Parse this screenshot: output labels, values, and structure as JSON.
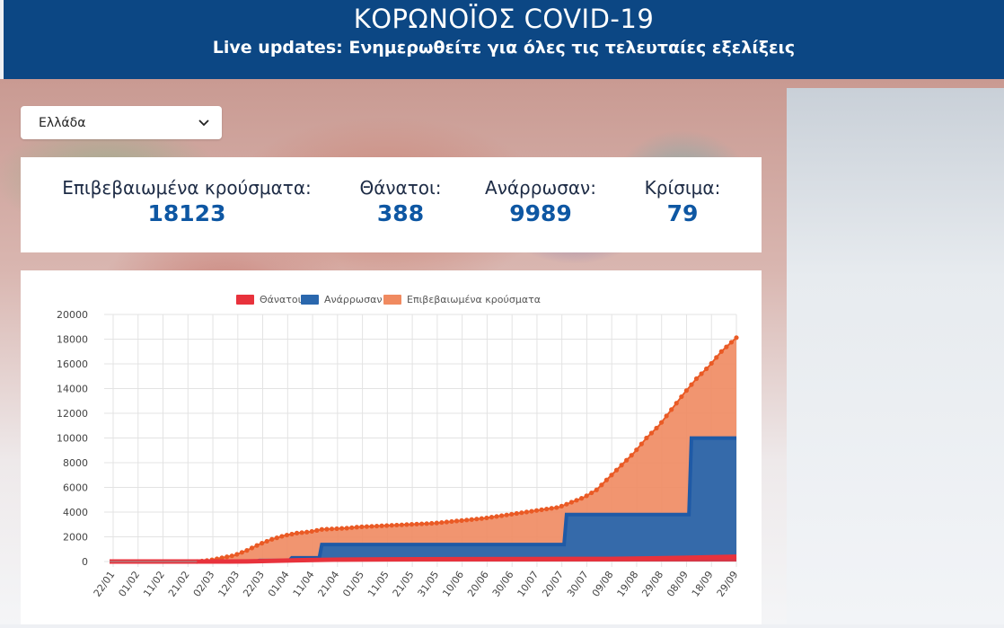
{
  "header": {
    "title": "ΚΟΡΩΝΟΪΟΣ COVID-19",
    "subtitle": "Live updates: Ενημερωθείτε για όλες τις τελευταίες εξελίξεις"
  },
  "country_select": {
    "selected": "Ελλάδα"
  },
  "stats": [
    {
      "label": "Επιβεβαιωμένα κρούσματα:",
      "value": "18123"
    },
    {
      "label": "Θάνατοι:",
      "value": "388"
    },
    {
      "label": "Ανάρρωσαν:",
      "value": "9989"
    },
    {
      "label": "Κρίσιμα:",
      "value": "79"
    }
  ],
  "colors": {
    "header_bg": "#0c4784",
    "deaths": "#e8323c",
    "recovered": "#2a67ad",
    "confirmed": "#f08a60",
    "confirmed_line": "#ea5a25"
  },
  "chart_data": {
    "type": "area",
    "legend": [
      "Θάνατοι",
      "Ανάρρωσαν",
      "Επιβεβαιωμένα κρούσματα"
    ],
    "legend_position": "top-center",
    "x_tick_labels": [
      "22/01",
      "01/02",
      "11/02",
      "21/02",
      "02/03",
      "12/03",
      "22/03",
      "01/04",
      "11/04",
      "21/04",
      "01/05",
      "11/05",
      "21/05",
      "31/05",
      "10/06",
      "20/06",
      "30/06",
      "10/07",
      "20/07",
      "30/07",
      "09/08",
      "19/08",
      "29/08",
      "08/09",
      "18/09",
      "29/09"
    ],
    "y_tick_labels": [
      "0",
      "2000",
      "4000",
      "6000",
      "8000",
      "10000",
      "12000",
      "14000",
      "16000",
      "18000",
      "20000"
    ],
    "ylim": [
      0,
      20000
    ],
    "x_day_range": [
      0,
      251
    ],
    "grid": true,
    "series": [
      {
        "name": "Επιβεβαιωμένα κρούσματα",
        "day": [
          0,
          35,
          40,
          45,
          50,
          55,
          60,
          65,
          70,
          75,
          80,
          85,
          90,
          95,
          100,
          110,
          120,
          130,
          140,
          150,
          160,
          170,
          180,
          190,
          195,
          200,
          205,
          210,
          215,
          220,
          225,
          230,
          235,
          240,
          245,
          251
        ],
        "values": [
          0,
          0,
          100,
          300,
          500,
          900,
          1400,
          1800,
          2100,
          2300,
          2400,
          2600,
          2650,
          2700,
          2800,
          2900,
          3000,
          3100,
          3300,
          3500,
          3800,
          4100,
          4400,
          5200,
          5800,
          6800,
          7800,
          8800,
          10000,
          11000,
          12300,
          13600,
          14800,
          15800,
          17000,
          18123
        ]
      },
      {
        "name": "Ανάρρωσαν",
        "day": [
          0,
          44,
          45,
          59,
          60,
          72,
          73,
          84,
          85,
          155,
          156,
          182,
          183,
          200,
          201,
          232,
          233,
          251
        ],
        "values": [
          0,
          0,
          20,
          20,
          80,
          80,
          300,
          300,
          1374,
          1374,
          1374,
          1374,
          3804,
          3804,
          3804,
          3804,
          9989,
          9989
        ]
      },
      {
        "name": "Θάνατοι",
        "day": [
          0,
          44,
          55,
          65,
          75,
          90,
          110,
          140,
          170,
          200,
          220,
          251
        ],
        "values": [
          0,
          0,
          10,
          50,
          100,
          150,
          170,
          190,
          200,
          210,
          260,
          388
        ]
      }
    ]
  }
}
